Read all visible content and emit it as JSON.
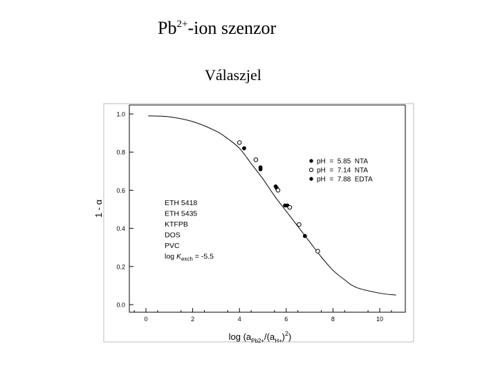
{
  "slide": {
    "title_main": "Pb",
    "title_sup": "2+",
    "title_rest": "-ion szenzor",
    "subtitle": "Válaszjel"
  },
  "chart_data": {
    "type": "scatter",
    "ylabel": "1 - α",
    "xlabel_parts": [
      "log (a",
      "Pb2+",
      "/(a",
      "H+",
      ")",
      "2",
      ")"
    ],
    "xlim": [
      -1,
      11
    ],
    "ylim": [
      -0.05,
      1.03
    ],
    "x_ticks": [
      0,
      2,
      4,
      6,
      8,
      10
    ],
    "x_tick_labels": [
      "0",
      "2",
      "4",
      "6",
      "8",
      "10"
    ],
    "y_ticks": [
      0.0,
      0.2,
      0.4,
      0.6,
      0.8,
      1.0
    ],
    "y_tick_labels": [
      "0.0",
      "0.2",
      "0.4",
      "0.6",
      "0.8",
      "1.0"
    ],
    "grid": false,
    "legend_position": "upper-right",
    "fit_curve": {
      "x": [
        0.1,
        1.0,
        2.0,
        3.0,
        3.5,
        4.0,
        4.5,
        5.0,
        5.5,
        6.0,
        6.5,
        7.0,
        7.5,
        8.0,
        8.5,
        9.0,
        10.0,
        10.7
      ],
      "y": [
        0.99,
        0.985,
        0.96,
        0.91,
        0.87,
        0.82,
        0.74,
        0.66,
        0.57,
        0.49,
        0.41,
        0.33,
        0.25,
        0.18,
        0.13,
        0.09,
        0.06,
        0.05
      ]
    },
    "series": [
      {
        "name": "pH  =  5.85  NTA",
        "marker": "filled-dot",
        "x": [
          4.2,
          4.9,
          5.6,
          6.05,
          6.8
        ],
        "y": [
          0.82,
          0.71,
          0.61,
          0.52,
          0.36
        ]
      },
      {
        "name": "pH  =  7.14  NTA",
        "marker": "open-circle",
        "x": [
          4.0,
          4.7,
          5.65,
          6.15,
          6.55,
          7.35
        ],
        "y": [
          0.85,
          0.76,
          0.6,
          0.51,
          0.42,
          0.28
        ]
      },
      {
        "name": "pH  =  7.88  EDTA",
        "marker": "filled-dot",
        "x": [
          4.9,
          5.55,
          5.95
        ],
        "y": [
          0.72,
          0.62,
          0.52
        ]
      }
    ],
    "annotation_lines": [
      "ETH 5418",
      "ETH 5435",
      "KTFPB",
      "DOS",
      "PVC"
    ],
    "annotation_log_k": {
      "prefix": "log ",
      "k": "K",
      "sub": "exch",
      "suffix": " = -5.5"
    }
  }
}
